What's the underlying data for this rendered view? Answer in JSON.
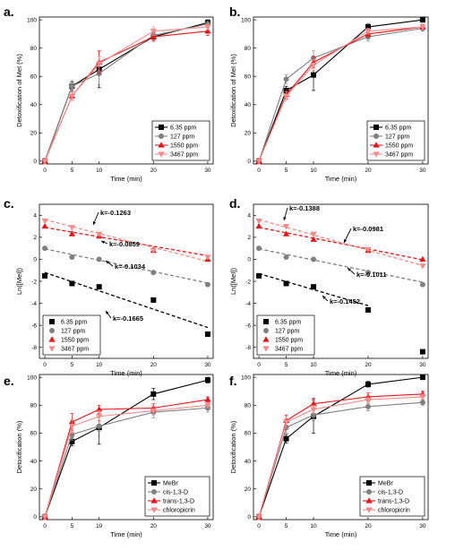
{
  "colors": {
    "6.35 ppm": "#000000",
    "127 ppm": "#808080",
    "1550 ppm": "#e8141b",
    "3467 ppm": "#f48a8a",
    "MeBr": "#000000",
    "cis-1,3-D": "#808080",
    "trans-1,3-D": "#e8141b",
    "chloropicrin": "#f48a8a"
  },
  "markers": {
    "6.35 ppm": "square",
    "127 ppm": "circle",
    "1550 ppm": "triangle-up",
    "3467 ppm": "triangle-down",
    "MeBr": "square",
    "cis-1,3-D": "circle",
    "trans-1,3-D": "triangle-up",
    "chloropicrin": "triangle-down"
  },
  "chart_data": [
    {
      "panel": "a.",
      "type": "line",
      "xlabel": "Time (min)",
      "ylabel": "Detoxification of MeI (%)",
      "xlim": [
        -1,
        31
      ],
      "ylim": [
        -2,
        102
      ],
      "xticks": [
        0,
        5,
        10,
        20,
        30
      ],
      "yticks": [
        0,
        20,
        40,
        60,
        80,
        100
      ],
      "legend": "bottom-right",
      "series": [
        {
          "name": "6.35 ppm",
          "x": [
            0,
            5,
            10,
            20,
            30
          ],
          "y": [
            0,
            53,
            65,
            88,
            98
          ],
          "err": [
            2,
            3,
            13,
            3,
            2
          ]
        },
        {
          "name": "127 ppm",
          "x": [
            0,
            5,
            10,
            20,
            30
          ],
          "y": [
            0,
            53,
            62,
            89,
            97
          ],
          "err": [
            2,
            4,
            8,
            3,
            2
          ]
        },
        {
          "name": "1550 ppm",
          "x": [
            0,
            5,
            10,
            20,
            30
          ],
          "y": [
            0,
            46,
            70,
            88,
            92
          ],
          "err": [
            2,
            3,
            8,
            3,
            3
          ]
        },
        {
          "name": "3467 ppm",
          "x": [
            0,
            5,
            10,
            20,
            30
          ],
          "y": [
            0,
            46,
            69,
            92,
            95
          ],
          "err": [
            2,
            3,
            5,
            3,
            2
          ]
        }
      ]
    },
    {
      "panel": "b.",
      "type": "line",
      "xlabel": "Time (min)",
      "ylabel": "Detoxification of MeI (%)",
      "xlim": [
        -1,
        31
      ],
      "ylim": [
        -2,
        102
      ],
      "xticks": [
        0,
        5,
        10,
        20,
        30
      ],
      "yticks": [
        0,
        20,
        40,
        60,
        80,
        100
      ],
      "legend": "bottom-right",
      "series": [
        {
          "name": "6.35 ppm",
          "x": [
            0,
            5,
            10,
            20,
            30
          ],
          "y": [
            0,
            50,
            61,
            95,
            100
          ],
          "err": [
            2,
            3,
            11,
            2,
            1
          ]
        },
        {
          "name": "127 ppm",
          "x": [
            0,
            5,
            10,
            20,
            30
          ],
          "y": [
            0,
            58,
            73,
            88,
            94
          ],
          "err": [
            2,
            3,
            5,
            3,
            2
          ]
        },
        {
          "name": "1550 ppm",
          "x": [
            0,
            5,
            10,
            20,
            30
          ],
          "y": [
            0,
            47,
            70,
            90,
            95
          ],
          "err": [
            2,
            3,
            4,
            2,
            2
          ]
        },
        {
          "name": "3467 ppm",
          "x": [
            0,
            5,
            10,
            20,
            30
          ],
          "y": [
            0,
            46,
            68,
            92,
            95
          ],
          "err": [
            2,
            3,
            4,
            2,
            2
          ]
        }
      ]
    },
    {
      "panel": "c.",
      "type": "scatter",
      "xlabel": "Time (min)",
      "ylabel": "Ln([MeI])",
      "xlim": [
        -1,
        31
      ],
      "ylim": [
        -9,
        5
      ],
      "xticks": [
        0,
        5,
        10,
        20,
        30
      ],
      "yticks": [
        -8,
        -6,
        -4,
        -2,
        0,
        2,
        4
      ],
      "legend": "bottom-left",
      "series": [
        {
          "name": "6.35 ppm",
          "x": [
            0,
            5,
            10,
            20,
            30
          ],
          "y": [
            -1.5,
            -2.2,
            -2.5,
            -3.7,
            -6.8
          ]
        },
        {
          "name": "127 ppm",
          "x": [
            0,
            5,
            10,
            20,
            30
          ],
          "y": [
            1.0,
            0.2,
            0,
            -1.2,
            -2.3
          ]
        },
        {
          "name": "1550 ppm",
          "x": [
            0,
            5,
            10,
            20,
            30
          ],
          "y": [
            3.0,
            2.3,
            2.1,
            0.8,
            0
          ]
        },
        {
          "name": "3467 ppm",
          "x": [
            0,
            5,
            10,
            20,
            30
          ],
          "y": [
            3.5,
            2.9,
            2.3,
            0.8,
            0.2
          ]
        }
      ],
      "fits": [
        {
          "series": "6.35 ppm",
          "k": -0.1665,
          "b": -1.2
        },
        {
          "series": "127 ppm",
          "k": -0.1034,
          "b": 0.95
        },
        {
          "series": "1550 ppm",
          "k": -0.0859,
          "b": 2.9
        },
        {
          "series": "3467 ppm",
          "k": -0.1263,
          "b": 3.6
        }
      ],
      "annotations": [
        "k=-0.1263",
        "k=-0.0859",
        "k=-0.1034",
        "k=-0.1665"
      ]
    },
    {
      "panel": "d.",
      "type": "scatter",
      "xlabel": "Time (min)",
      "ylabel": "Ln([MeI])",
      "xlim": [
        -1,
        31
      ],
      "ylim": [
        -9,
        5
      ],
      "xticks": [
        0,
        5,
        10,
        20,
        30
      ],
      "yticks": [
        -8,
        -6,
        -4,
        -2,
        0,
        2,
        4
      ],
      "legend": "bottom-left",
      "series": [
        {
          "name": "6.35 ppm",
          "x": [
            0,
            5,
            10,
            20,
            30
          ],
          "y": [
            -1.5,
            -2.2,
            -2.5,
            -4.6,
            -8.4
          ]
        },
        {
          "name": "127 ppm",
          "x": [
            0,
            5,
            10,
            20,
            30
          ],
          "y": [
            1.0,
            0.2,
            0,
            -1.2,
            -2.3
          ]
        },
        {
          "name": "1550 ppm",
          "x": [
            0,
            5,
            10,
            20,
            30
          ],
          "y": [
            3.0,
            2.3,
            1.8,
            0.8,
            0
          ]
        },
        {
          "name": "3467 ppm",
          "x": [
            0,
            5,
            10,
            20,
            30
          ],
          "y": [
            3.5,
            3.0,
            2.3,
            0.9,
            -0.6
          ]
        }
      ],
      "fits": [
        {
          "series": "6.35 ppm",
          "k": -0.1452,
          "b": -1.3,
          "xend": 20
        },
        {
          "series": "127 ppm",
          "k": -0.1011,
          "b": 0.95
        },
        {
          "series": "1550 ppm",
          "k": -0.0981,
          "b": 2.9
        },
        {
          "series": "3467 ppm",
          "k": -0.1388,
          "b": 3.6
        }
      ],
      "annotations": [
        "k=-0.1388",
        "k=-0.0981",
        "k=-0.1011",
        "k=-0.1452"
      ]
    },
    {
      "panel": "e.",
      "type": "line",
      "xlabel": "Time (min)",
      "ylabel": "Detoxification (%)",
      "xlim": [
        -1,
        31
      ],
      "ylim": [
        -2,
        102
      ],
      "xticks": [
        0,
        5,
        10,
        20,
        30
      ],
      "yticks": [
        0,
        20,
        40,
        60,
        80,
        100
      ],
      "legend": "bottom-right",
      "series": [
        {
          "name": "MeBr",
          "x": [
            0,
            5,
            10,
            20,
            30
          ],
          "y": [
            0,
            54,
            64,
            88,
            98
          ],
          "err": [
            2,
            3,
            12,
            4,
            2
          ]
        },
        {
          "name": "cis-1,3-D",
          "x": [
            0,
            5,
            10,
            20,
            30
          ],
          "y": [
            0,
            59,
            65,
            75,
            78
          ],
          "err": [
            2,
            4,
            4,
            4,
            3
          ]
        },
        {
          "name": "trans-1,3-D",
          "x": [
            0,
            5,
            10,
            20,
            30
          ],
          "y": [
            0,
            68,
            77,
            78,
            84
          ],
          "err": [
            2,
            6,
            3,
            3,
            2
          ]
        },
        {
          "name": "chloropicrin",
          "x": [
            0,
            5,
            10,
            20,
            30
          ],
          "y": [
            0,
            65,
            72,
            76,
            80
          ],
          "err": [
            2,
            5,
            4,
            3,
            2
          ]
        }
      ]
    },
    {
      "panel": "f.",
      "type": "line",
      "xlabel": "Time (min)",
      "ylabel": "Detoxification (%)",
      "xlim": [
        -1,
        31
      ],
      "ylim": [
        -2,
        102
      ],
      "xticks": [
        0,
        5,
        10,
        20,
        30
      ],
      "yticks": [
        0,
        20,
        40,
        60,
        80,
        100
      ],
      "legend": "bottom-right",
      "series": [
        {
          "name": "MeBr",
          "x": [
            0,
            5,
            10,
            20,
            30
          ],
          "y": [
            0,
            56,
            72,
            95,
            100
          ],
          "err": [
            2,
            3,
            12,
            2,
            1
          ]
        },
        {
          "name": "cis-1,3-D",
          "x": [
            0,
            5,
            10,
            20,
            30
          ],
          "y": [
            0,
            64,
            73,
            79,
            82
          ],
          "err": [
            2,
            4,
            4,
            3,
            2
          ]
        },
        {
          "name": "trans-1,3-D",
          "x": [
            0,
            5,
            10,
            20,
            30
          ],
          "y": [
            0,
            69,
            81,
            86,
            88
          ],
          "err": [
            2,
            4,
            4,
            3,
            2
          ]
        },
        {
          "name": "chloropicrin",
          "x": [
            0,
            5,
            10,
            20,
            30
          ],
          "y": [
            0,
            68,
            77,
            84,
            86
          ],
          "err": [
            2,
            4,
            3,
            3,
            2
          ]
        }
      ]
    }
  ]
}
